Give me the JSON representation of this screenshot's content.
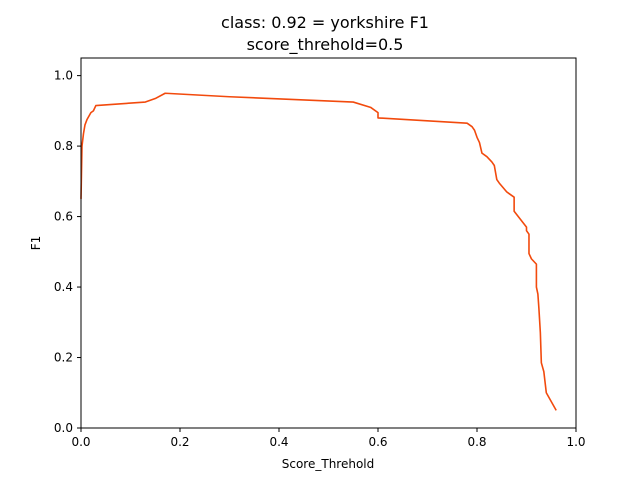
{
  "chart_data": {
    "type": "line",
    "title": "class: 0.92 = yorkshire F1",
    "subtitle": "score_threhold=0.5",
    "xlabel": "Score_Threhold",
    "ylabel": "F1",
    "xlim": [
      0.0,
      1.0
    ],
    "ylim": [
      0.0,
      1.05
    ],
    "xticks": [
      "0.0",
      "0.2",
      "0.4",
      "0.6",
      "0.8",
      "1.0"
    ],
    "yticks": [
      "0.0",
      "0.2",
      "0.4",
      "0.6",
      "0.8",
      "1.0"
    ],
    "grid": false,
    "series": [
      {
        "color": "#f24a0d",
        "x": [
          0.0,
          0.002,
          0.005,
          0.008,
          0.012,
          0.02,
          0.025,
          0.03,
          0.13,
          0.15,
          0.17,
          0.3,
          0.55,
          0.585,
          0.6,
          0.6,
          0.78,
          0.79,
          0.795,
          0.8,
          0.805,
          0.81,
          0.82,
          0.83,
          0.835,
          0.84,
          0.845,
          0.86,
          0.865,
          0.87,
          0.875,
          0.875,
          0.9,
          0.9,
          0.905,
          0.905,
          0.91,
          0.92,
          0.92,
          0.923,
          0.925,
          0.928,
          0.93,
          0.935,
          0.94,
          0.96
        ],
        "y": [
          0.65,
          0.8,
          0.835,
          0.86,
          0.875,
          0.895,
          0.9,
          0.915,
          0.925,
          0.935,
          0.95,
          0.94,
          0.925,
          0.91,
          0.895,
          0.88,
          0.865,
          0.855,
          0.845,
          0.825,
          0.81,
          0.78,
          0.77,
          0.755,
          0.745,
          0.705,
          0.695,
          0.67,
          0.665,
          0.66,
          0.655,
          0.615,
          0.57,
          0.56,
          0.55,
          0.495,
          0.48,
          0.465,
          0.4,
          0.38,
          0.34,
          0.27,
          0.185,
          0.16,
          0.1,
          0.05
        ]
      }
    ]
  }
}
